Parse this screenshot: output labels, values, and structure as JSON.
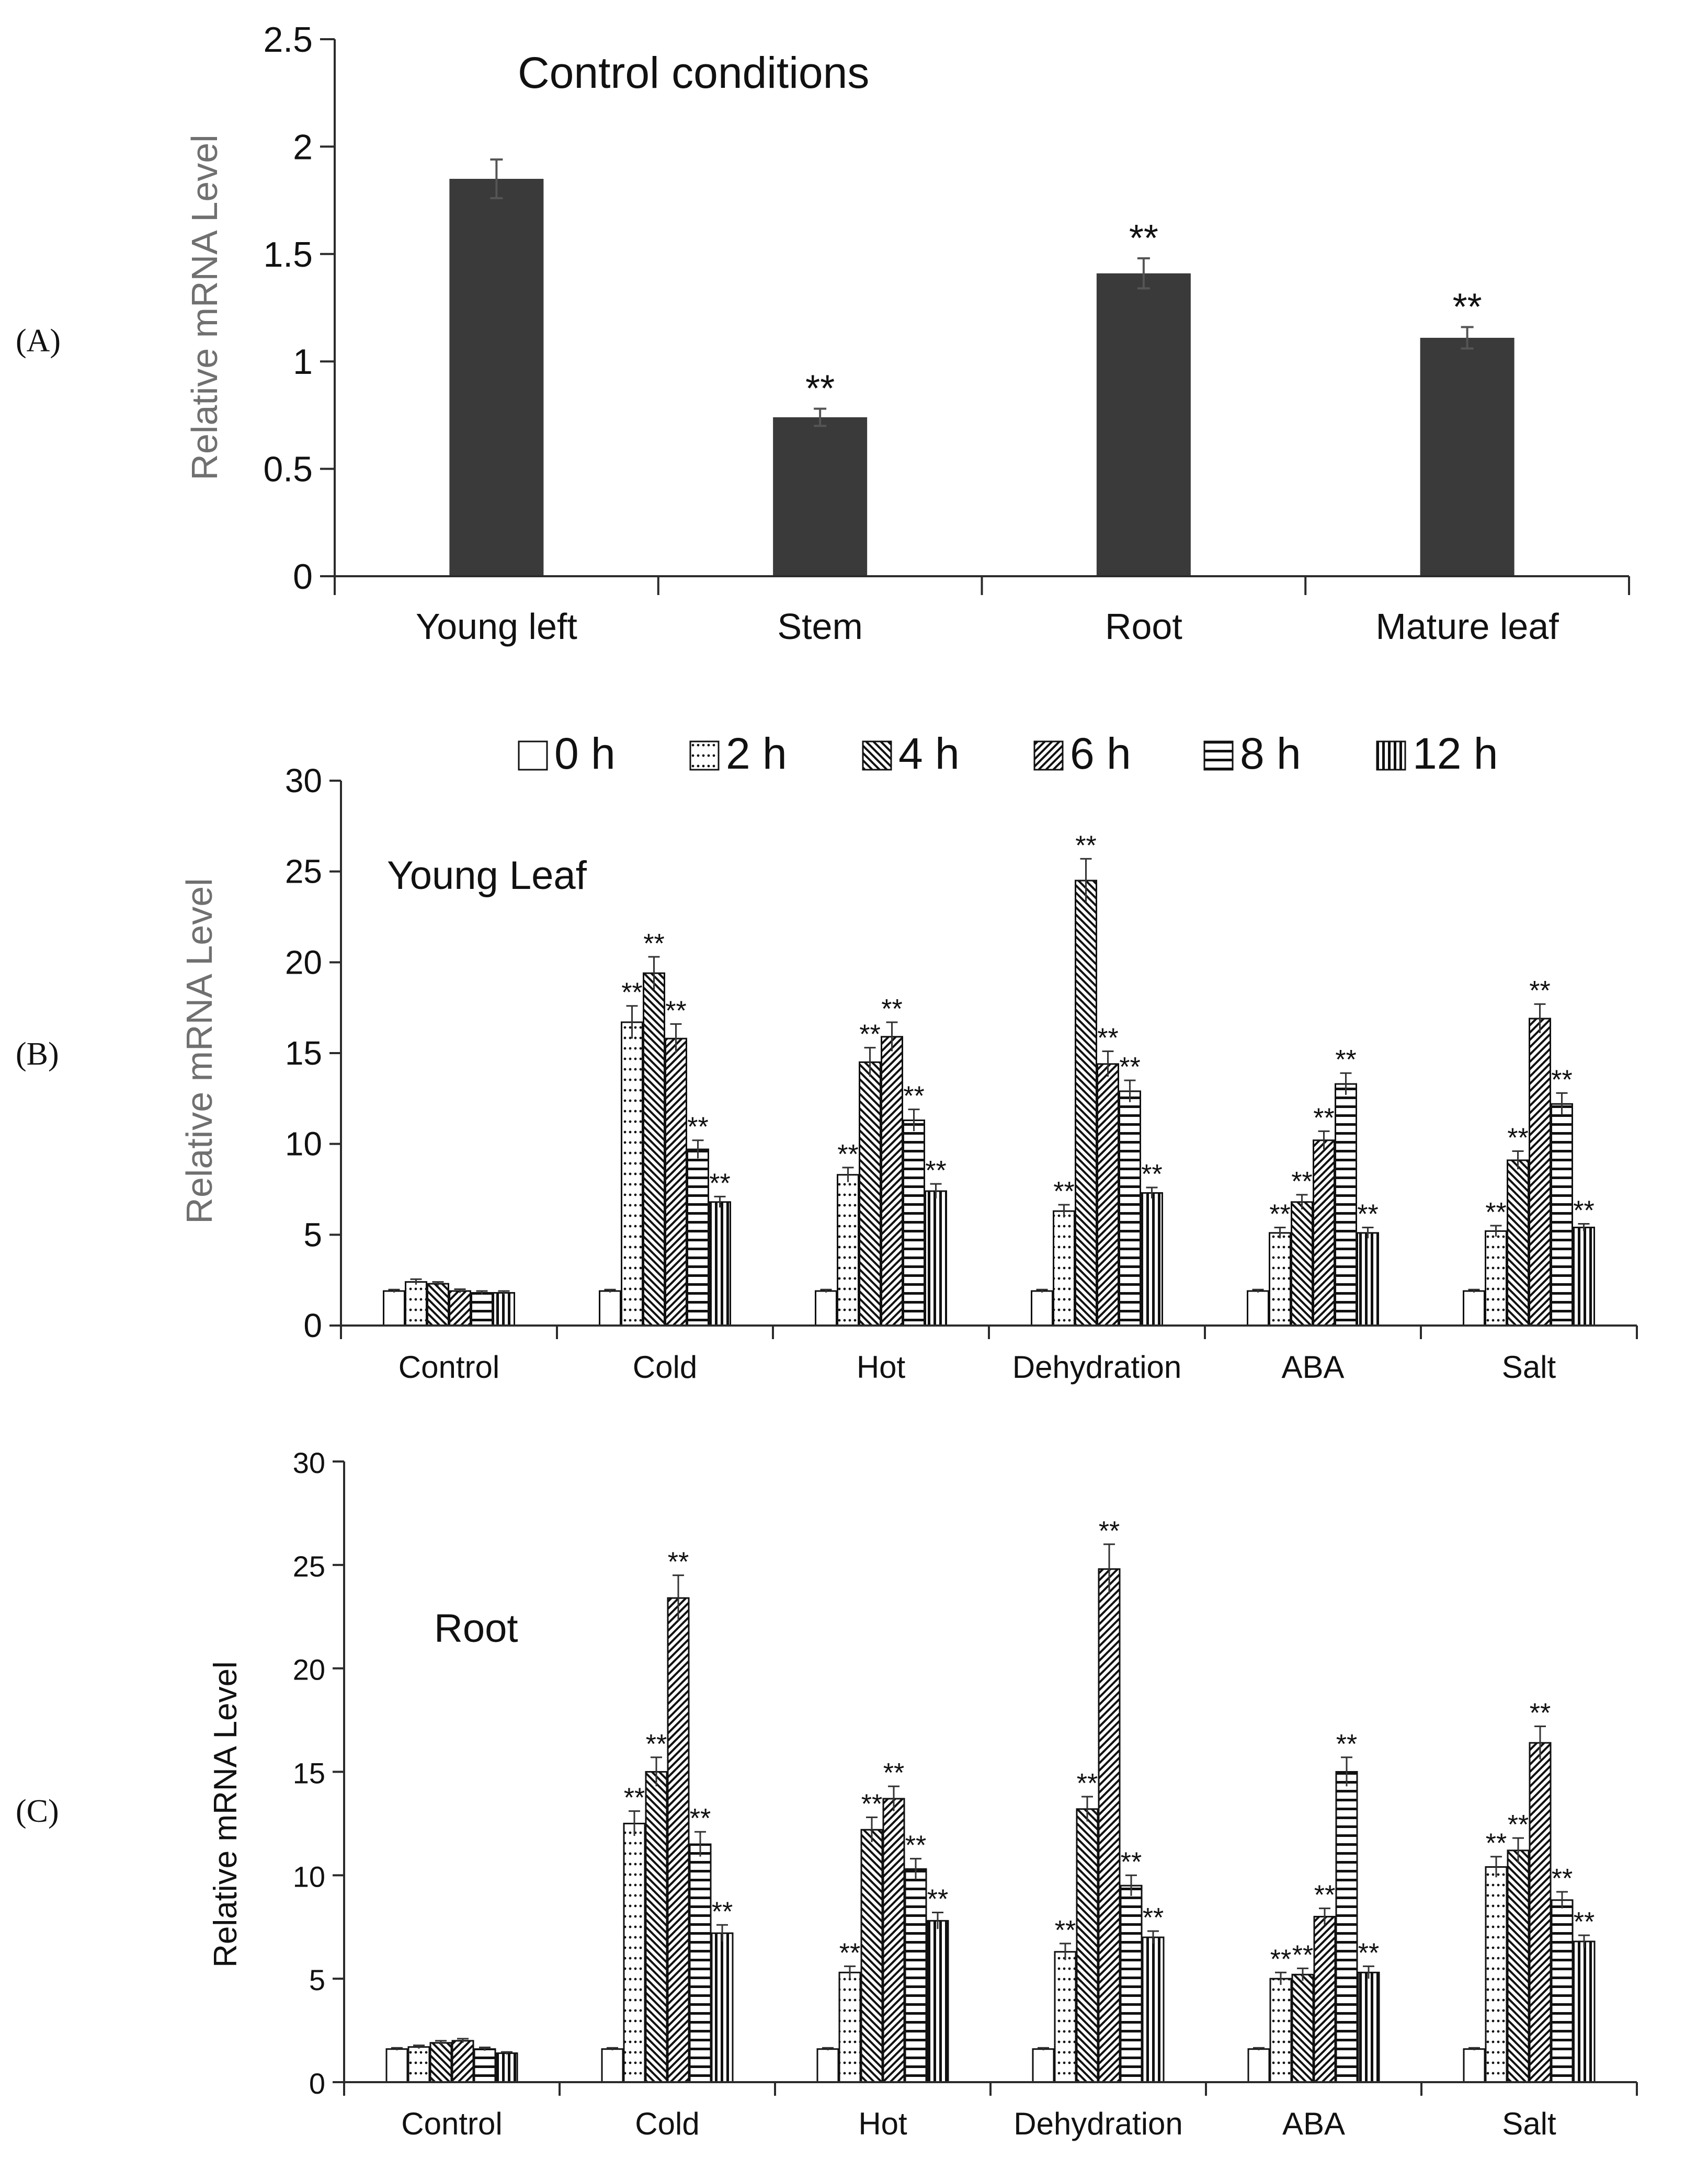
{
  "colors": {
    "bar": "#3a3a3a",
    "axis": "#2b2b2b",
    "ylabel_top": "#707070",
    "text": "#111111"
  },
  "chart_data": [
    {
      "panel": "(A)",
      "type": "bar",
      "title": "Control conditions",
      "xlabel": "",
      "ylabel": "Relative mRNA Level",
      "ylim": [
        0,
        2.5
      ],
      "yticks": [
        "0",
        "0.5",
        "1",
        "1.5",
        "2",
        "2.5"
      ],
      "categories": [
        "Young left",
        "Stem",
        "Root",
        "Mature leaf"
      ],
      "values": [
        1.85,
        0.74,
        1.41,
        1.11
      ],
      "errors": [
        0.09,
        0.04,
        0.07,
        0.05
      ],
      "significance": [
        "",
        "**",
        "**",
        "**"
      ],
      "grid": false
    },
    {
      "panel": "(B)",
      "type": "bar",
      "title": "Young Leaf",
      "xlabel": "",
      "ylabel": "Relative mRNA Level",
      "ylim": [
        0,
        30
      ],
      "yticks": [
        "0",
        "5",
        "10",
        "15",
        "20",
        "25",
        "30"
      ],
      "legend_position": "top",
      "categories": [
        "Control",
        "Cold",
        "Hot",
        "Dehydration",
        "ABA",
        "Salt"
      ],
      "series": [
        {
          "name": "0 h",
          "pattern": "blank",
          "values": [
            1.9,
            1.9,
            1.9,
            1.9,
            1.9,
            1.9
          ],
          "errors": [
            0.08,
            0.08,
            0.08,
            0.08,
            0.08,
            0.08
          ],
          "significance": [
            "",
            "",
            "",
            "",
            "",
            ""
          ]
        },
        {
          "name": "2 h",
          "pattern": "dots",
          "values": [
            2.4,
            16.7,
            8.3,
            6.3,
            5.1,
            5.2
          ],
          "errors": [
            0.15,
            0.9,
            0.4,
            0.35,
            0.3,
            0.3
          ],
          "significance": [
            "",
            "**",
            "**",
            "**",
            "**",
            "**"
          ]
        },
        {
          "name": "4 h",
          "pattern": "back-diag",
          "values": [
            2.3,
            19.4,
            14.5,
            24.5,
            6.8,
            9.1
          ],
          "errors": [
            0.1,
            0.9,
            0.8,
            1.2,
            0.4,
            0.5
          ],
          "significance": [
            "",
            "**",
            "**",
            "**",
            "**",
            "**"
          ]
        },
        {
          "name": "6 h",
          "pattern": "diag",
          "values": [
            1.9,
            15.8,
            15.9,
            14.4,
            10.2,
            16.9
          ],
          "errors": [
            0.1,
            0.8,
            0.8,
            0.7,
            0.5,
            0.8
          ],
          "significance": [
            "",
            "**",
            "**",
            "**",
            "**",
            "**"
          ]
        },
        {
          "name": "8 h",
          "pattern": "horizontal",
          "values": [
            1.8,
            9.7,
            11.3,
            12.9,
            13.3,
            12.2
          ],
          "errors": [
            0.1,
            0.5,
            0.6,
            0.6,
            0.6,
            0.6
          ],
          "significance": [
            "",
            "**",
            "**",
            "**",
            "**",
            "**"
          ]
        },
        {
          "name": "12 h",
          "pattern": "vertical",
          "values": [
            1.8,
            6.8,
            7.4,
            7.3,
            5.1,
            5.4
          ],
          "errors": [
            0.1,
            0.3,
            0.4,
            0.3,
            0.3,
            0.2
          ],
          "significance": [
            "",
            "**",
            "**",
            "**",
            "**",
            "**"
          ]
        }
      ]
    },
    {
      "panel": "(C)",
      "type": "bar",
      "title": "Root",
      "xlabel": "",
      "ylabel": "Relative mRNA Level",
      "ylim": [
        0,
        30
      ],
      "yticks": [
        "0",
        "5",
        "10",
        "15",
        "20",
        "25",
        "30"
      ],
      "categories": [
        "Control",
        "Cold",
        "Hot",
        "Dehydration",
        "ABA",
        "Salt"
      ],
      "series": [
        {
          "name": "0 h",
          "pattern": "blank",
          "values": [
            1.6,
            1.6,
            1.6,
            1.6,
            1.6,
            1.6
          ],
          "errors": [
            0.06,
            0.06,
            0.06,
            0.06,
            0.06,
            0.06
          ],
          "significance": [
            "",
            "",
            "",
            "",
            "",
            ""
          ]
        },
        {
          "name": "2 h",
          "pattern": "dots",
          "values": [
            1.7,
            12.5,
            5.3,
            6.3,
            5.0,
            10.4
          ],
          "errors": [
            0.08,
            0.6,
            0.3,
            0.4,
            0.3,
            0.5
          ],
          "significance": [
            "",
            "**",
            "**",
            "**",
            "**",
            "**"
          ]
        },
        {
          "name": "4 h",
          "pattern": "back-diag",
          "values": [
            1.9,
            15.0,
            12.2,
            13.2,
            5.2,
            11.2
          ],
          "errors": [
            0.1,
            0.7,
            0.6,
            0.6,
            0.3,
            0.6
          ],
          "significance": [
            "",
            "**",
            "**",
            "**",
            "**",
            "**"
          ]
        },
        {
          "name": "6 h",
          "pattern": "diag",
          "values": [
            2.0,
            23.4,
            13.7,
            24.8,
            8.0,
            16.4
          ],
          "errors": [
            0.1,
            1.1,
            0.6,
            1.2,
            0.4,
            0.8
          ],
          "significance": [
            "",
            "**",
            "**",
            "**",
            "**",
            "**"
          ]
        },
        {
          "name": "8 h",
          "pattern": "horizontal",
          "values": [
            1.6,
            11.5,
            10.3,
            9.5,
            15.0,
            8.8
          ],
          "errors": [
            0.08,
            0.6,
            0.5,
            0.5,
            0.7,
            0.4
          ],
          "significance": [
            "",
            "**",
            "**",
            "**",
            "**",
            "**"
          ]
        },
        {
          "name": "12 h",
          "pattern": "vertical",
          "values": [
            1.4,
            7.2,
            7.8,
            7.0,
            5.3,
            6.8
          ],
          "errors": [
            0.06,
            0.4,
            0.4,
            0.3,
            0.3,
            0.3
          ],
          "significance": [
            "",
            "**",
            "**",
            "**",
            "**",
            "**"
          ]
        }
      ]
    }
  ]
}
